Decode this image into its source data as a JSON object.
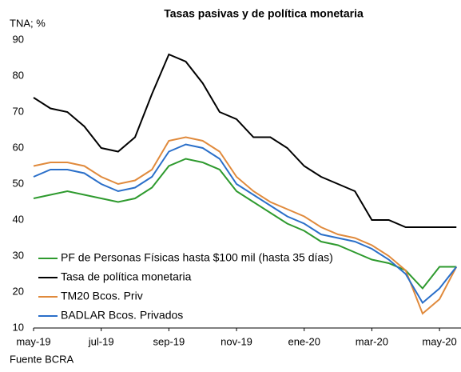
{
  "chart_data": {
    "type": "line",
    "title": "Tasas pasivas y de política monetaria",
    "y_label": "TNA; %",
    "source": "Fuente BCRA",
    "categories": [
      "may-19",
      null,
      null,
      null,
      "jul-19",
      null,
      null,
      null,
      "sep-19",
      null,
      null,
      null,
      "nov-19",
      null,
      null,
      null,
      "ene-20",
      null,
      null,
      null,
      "mar-20",
      null,
      null,
      null,
      "may-20",
      null
    ],
    "series": [
      {
        "name": "PF de Personas Físicas hasta $100 mil (hasta 35 días)",
        "color": "#2e9a2e",
        "values": [
          46,
          47,
          48,
          47,
          46,
          45,
          46,
          49,
          55,
          57,
          56,
          54,
          48,
          45,
          42,
          39,
          37,
          34,
          33,
          31,
          29,
          28,
          26,
          21,
          27,
          27
        ]
      },
      {
        "name": "Tasa de política monetaria",
        "color": "#000000",
        "values": [
          74,
          71,
          70,
          66,
          60,
          59,
          63,
          75,
          86,
          84,
          78,
          70,
          68,
          63,
          63,
          60,
          55,
          52,
          50,
          48,
          40,
          40,
          38,
          38,
          38,
          38
        ]
      },
      {
        "name": "TM20 Bcos. Priv",
        "color": "#e08a3c",
        "values": [
          55,
          56,
          56,
          55,
          52,
          50,
          51,
          54,
          62,
          63,
          62,
          59,
          52,
          48,
          45,
          43,
          41,
          38,
          36,
          35,
          33,
          30,
          26,
          14,
          18,
          27
        ]
      },
      {
        "name": "BADLAR Bcos. Privados",
        "color": "#2a6fc9",
        "values": [
          52,
          54,
          54,
          53,
          50,
          48,
          49,
          52,
          59,
          61,
          60,
          57,
          50,
          47,
          44,
          41,
          39,
          36,
          35,
          34,
          32,
          29,
          25,
          17,
          21,
          27
        ]
      }
    ],
    "ylim": [
      10,
      90
    ],
    "yticks": [
      10,
      20,
      30,
      40,
      50,
      60,
      70,
      80,
      90
    ],
    "grid": false,
    "legend": "lower left"
  }
}
